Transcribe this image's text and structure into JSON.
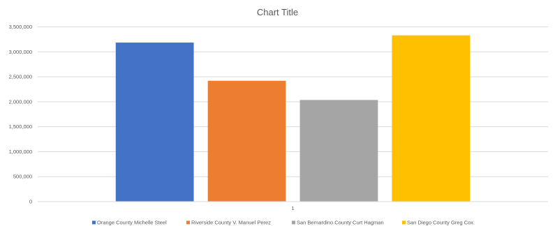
{
  "chart_data": {
    "type": "bar",
    "title": "Chart Title",
    "xlabel": "",
    "ylabel": "",
    "categories": [
      "1"
    ],
    "ylim": [
      0,
      3500000
    ],
    "yticks": [
      0,
      500000,
      1000000,
      1500000,
      2000000,
      2500000,
      3000000,
      3500000
    ],
    "ytick_labels": [
      "0",
      "500,000",
      "1,000,000",
      "1,500,000",
      "2,000,000",
      "2,500,000",
      "3,000,000",
      "3,500,000"
    ],
    "grid": true,
    "legend_position": "bottom",
    "series": [
      {
        "name": "Orange County Michelle Steel",
        "values": [
          3185000
        ],
        "color": "#4472C4"
      },
      {
        "name": "Riverside County V. Manuel Perez",
        "values": [
          2420000
        ],
        "color": "#ED7D31"
      },
      {
        "name": "San Bernardino County Curt Hagman",
        "values": [
          2035000
        ],
        "color": "#A5A5A5"
      },
      {
        "name": "San Diego County Greg Cox",
        "values": [
          3330000
        ],
        "color": "#FFC000"
      }
    ]
  }
}
